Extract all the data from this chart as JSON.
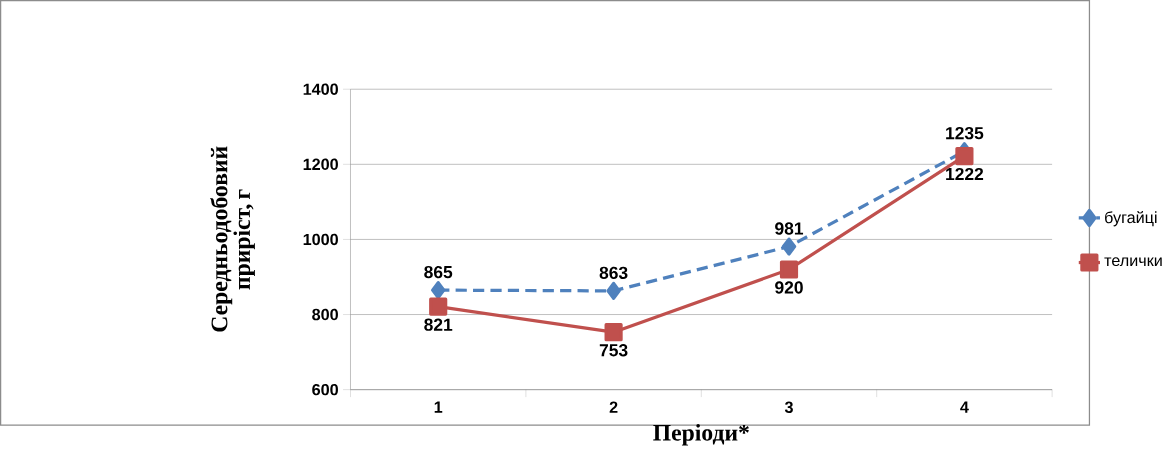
{
  "chart_data": {
    "type": "line",
    "xlabel": "Періоди*",
    "ylabel": "Середньодобовий приріст, г",
    "categories": [
      "1",
      "2",
      "3",
      "4"
    ],
    "series": [
      {
        "name": "бугайці",
        "color": "#4f81bd",
        "marker": "diamond",
        "line_style": "dashed",
        "values": [
          865,
          863,
          981,
          1235
        ]
      },
      {
        "name": "телички",
        "color": "#c0504d",
        "marker": "square",
        "line_style": "solid",
        "values": [
          821,
          753,
          920,
          1222
        ]
      }
    ],
    "ylim": [
      600,
      1400
    ],
    "yticks": [
      600,
      800,
      1000,
      1200,
      1400
    ],
    "grid": "y",
    "legend": "right",
    "data_labels": true
  }
}
